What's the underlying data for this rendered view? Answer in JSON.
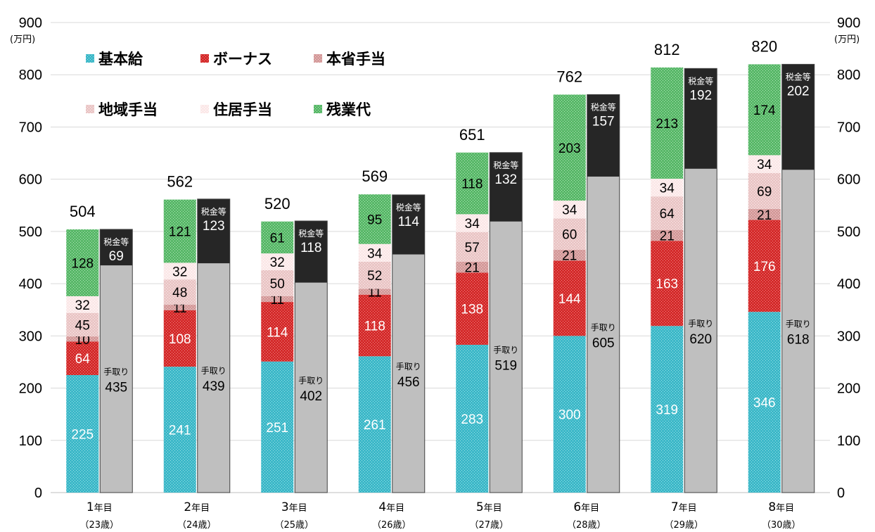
{
  "chart_data": {
    "type": "bar",
    "stacked": true,
    "paired_columns": true,
    "y_unit": "(万円)",
    "ylim": [
      0,
      900
    ],
    "yticks": [
      0,
      100,
      200,
      300,
      400,
      500,
      600,
      700,
      800,
      900
    ],
    "grid": true,
    "legend_position": "top-left",
    "categories": [
      {
        "num": "1",
        "year": "年目",
        "age": "（23歳）"
      },
      {
        "num": "2",
        "year": "年目",
        "age": "（24歳）"
      },
      {
        "num": "3",
        "year": "年目",
        "age": "（25歳）"
      },
      {
        "num": "4",
        "year": "年目",
        "age": "（26歳）"
      },
      {
        "num": "5",
        "year": "年目",
        "age": "（27歳）"
      },
      {
        "num": "6",
        "year": "年目",
        "age": "（28歳）"
      },
      {
        "num": "7",
        "year": "年目",
        "age": "（29歳）"
      },
      {
        "num": "8",
        "year": "年目",
        "age": "（30歳）"
      }
    ],
    "gross_series": [
      {
        "name": "基本給",
        "color": "#3cb8c8",
        "label_color": "#ffffff",
        "values": [
          225,
          241,
          251,
          261,
          283,
          300,
          319,
          346
        ]
      },
      {
        "name": "ボーナス",
        "color": "#d42a2a",
        "label_color": "#ffffff",
        "values": [
          64,
          108,
          114,
          118,
          138,
          144,
          163,
          176
        ]
      },
      {
        "name": "本省手当",
        "color": "#d49a9a",
        "label_color": "#000000",
        "values": [
          10,
          11,
          11,
          11,
          21,
          21,
          21,
          21
        ]
      },
      {
        "name": "地域手当",
        "color": "#eac6c6",
        "label_color": "#000000",
        "values": [
          45,
          48,
          50,
          52,
          57,
          60,
          64,
          69
        ]
      },
      {
        "name": "住居手当",
        "color": "#fae6e6",
        "label_color": "#000000",
        "values": [
          32,
          32,
          32,
          34,
          34,
          34,
          34,
          34
        ]
      },
      {
        "name": "残業代",
        "color": "#58b868",
        "label_color": "#000000",
        "values": [
          128,
          121,
          61,
          95,
          118,
          203,
          213,
          174
        ]
      }
    ],
    "totals": [
      "504",
      "562",
      "520",
      "569",
      "651",
      "762",
      "812",
      "820"
    ],
    "net_series": [
      {
        "name": "手取り",
        "color": "#bfbfbf",
        "values": [
          435,
          439,
          402,
          456,
          519,
          605,
          620,
          618
        ]
      },
      {
        "name": "税金等",
        "color": "#262626",
        "values": [
          69,
          123,
          118,
          114,
          132,
          157,
          192,
          202
        ]
      }
    ]
  }
}
